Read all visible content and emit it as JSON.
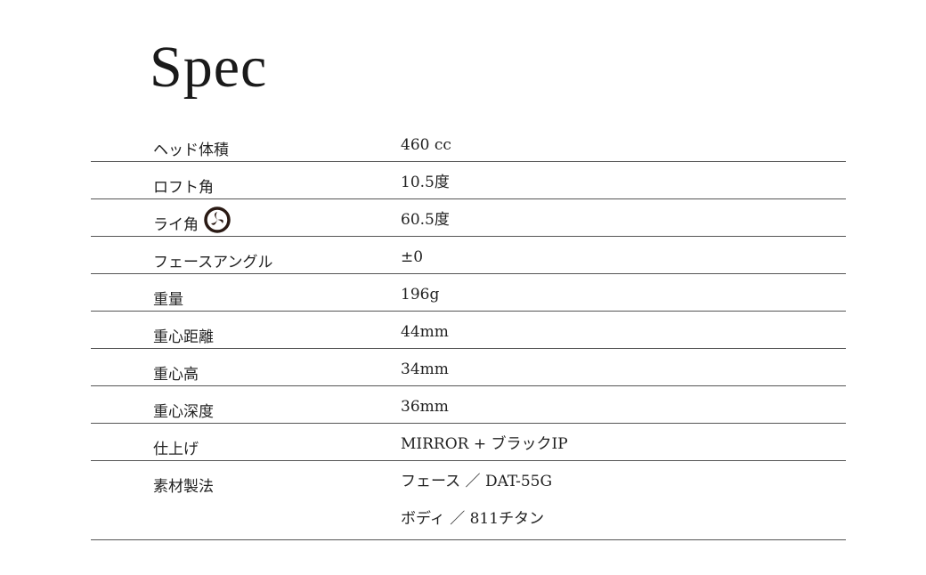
{
  "title": "Spec",
  "rows": [
    {
      "label": "ヘッド体積",
      "values": [
        "460 cc"
      ]
    },
    {
      "label": "ロフト角",
      "values": [
        "10.5度"
      ]
    },
    {
      "label": "ライ角",
      "icon": "mitsudomoe-icon",
      "values": [
        "60.5度"
      ]
    },
    {
      "label": "フェースアングル",
      "values": [
        "±0"
      ]
    },
    {
      "label": "重量",
      "values": [
        "196g"
      ]
    },
    {
      "label": "重心距離",
      "values": [
        "44mm"
      ]
    },
    {
      "label": "重心高",
      "values": [
        "34mm"
      ]
    },
    {
      "label": "重心深度",
      "values": [
        "36mm"
      ]
    },
    {
      "label": "仕上げ",
      "values": [
        "MIRROR + ブラックIP"
      ]
    },
    {
      "label": "素材製法",
      "values": [
        "フェース ／ DAT-55G",
        "ボディ ／ 811チタン"
      ]
    }
  ]
}
